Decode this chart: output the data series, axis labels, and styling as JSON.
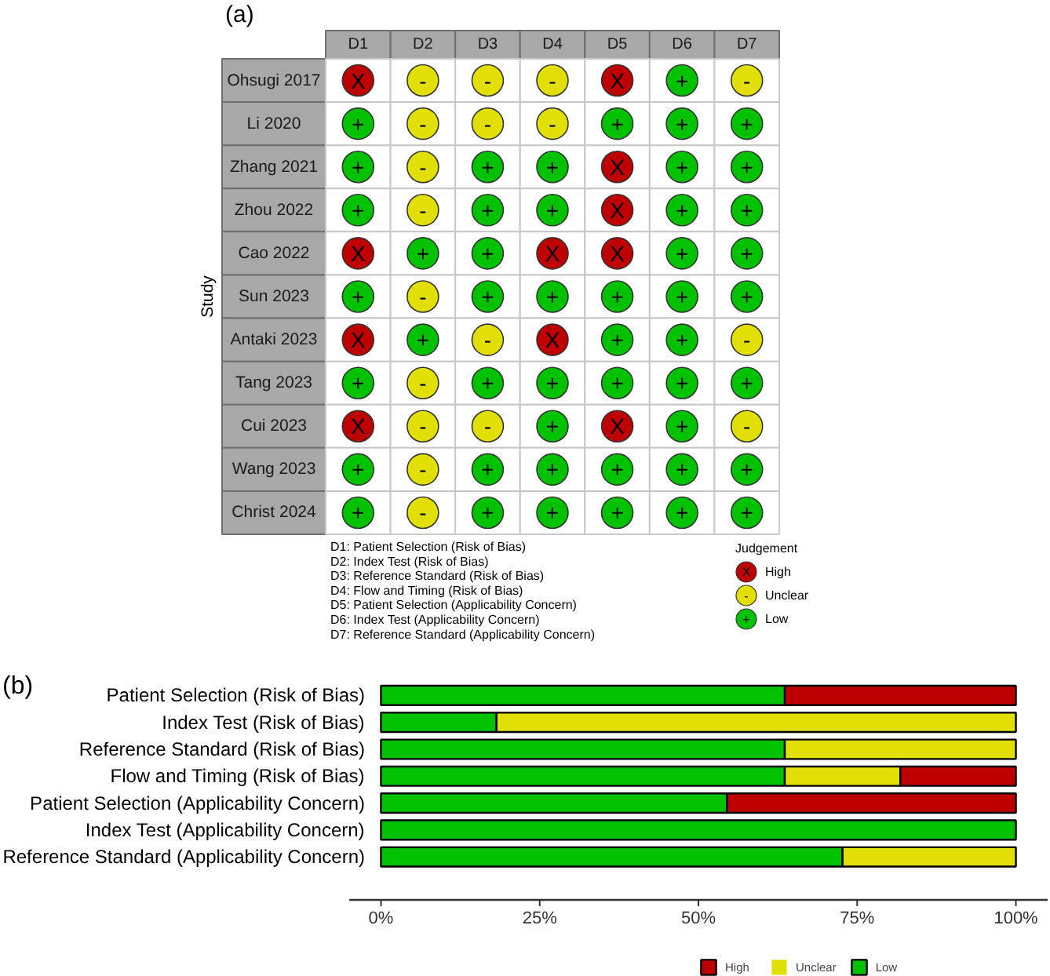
{
  "chart_data": [
    {
      "type": "heatmap",
      "title": "(a)",
      "ylabel": "Study",
      "categories": [
        "D1",
        "D2",
        "D3",
        "D4",
        "D5",
        "D6",
        "D7"
      ],
      "y_categories": [
        "Ohsugi 2017",
        "Li 2020",
        "Zhang 2021",
        "Zhou 2022",
        "Cao 2022",
        "Sun 2023",
        "Antaki 2023",
        "Tang 2023",
        "Cui 2023",
        "Wang 2023",
        "Christ 2024"
      ],
      "cells": [
        [
          "X",
          "-",
          "-",
          "-",
          "X",
          "+",
          "-"
        ],
        [
          "+",
          "-",
          "-",
          "-",
          "+",
          "+",
          "+"
        ],
        [
          "+",
          "-",
          "+",
          "+",
          "X",
          "+",
          "+"
        ],
        [
          "+",
          "-",
          "+",
          "+",
          "X",
          "+",
          "+"
        ],
        [
          "X",
          "+",
          "+",
          "X",
          "X",
          "+",
          "+"
        ],
        [
          "+",
          "-",
          "+",
          "+",
          "+",
          "+",
          "+"
        ],
        [
          "X",
          "+",
          "-",
          "X",
          "+",
          "+",
          "-"
        ],
        [
          "+",
          "-",
          "+",
          "+",
          "+",
          "+",
          "+"
        ],
        [
          "X",
          "-",
          "-",
          "+",
          "X",
          "+",
          "-"
        ],
        [
          "+",
          "-",
          "+",
          "+",
          "+",
          "+",
          "+"
        ],
        [
          "+",
          "-",
          "+",
          "+",
          "+",
          "+",
          "+"
        ]
      ],
      "cticks": [
        {
          "value": "X",
          "label": "High"
        },
        {
          "value": "-",
          "label": "Unclear"
        },
        {
          "value": "+",
          "label": "Low"
        }
      ],
      "clabel": "Judgement",
      "colors": [
        "#bf0000",
        "#e2df07",
        "#02c100"
      ],
      "annotations": [
        "D1: Patient Selection (Risk of Bias)",
        "D2: Index Test (Risk of Bias)",
        "D3: Reference Standard (Risk of Bias)",
        "D4: Flow and Timing (Risk of Bias)",
        "D5: Patient Selection (Applicability Concern)",
        "D6: Index Test (Applicability Concern)",
        "D7: Reference Standard (Applicability Concern)"
      ]
    },
    {
      "type": "bar",
      "title": "(b)",
      "orientation": "horizontal",
      "stacked": true,
      "categories": [
        "Patient Selection (Risk of Bias)",
        "Index Test (Risk of Bias)",
        "Reference Standard (Risk of Bias)",
        "Flow and Timing (Risk of Bias)",
        "Patient Selection (Applicability Concern)",
        "Index Test (Applicability Concern)",
        "Reference Standard (Applicability Concern)"
      ],
      "series": [
        {
          "name": "Low",
          "color": "#02c100",
          "values": [
            63.6,
            18.2,
            63.6,
            63.6,
            54.5,
            100,
            72.7
          ]
        },
        {
          "name": "Unclear",
          "color": "#e2df07",
          "values": [
            0,
            81.8,
            36.4,
            18.2,
            0,
            0,
            27.3
          ]
        },
        {
          "name": "High",
          "color": "#bf0000",
          "values": [
            36.4,
            0,
            0,
            18.2,
            45.5,
            0,
            0
          ]
        }
      ],
      "xlim": [
        -5,
        105
      ],
      "xticks": [
        {
          "value": 0,
          "label": "0%"
        },
        {
          "value": 25,
          "label": "25%"
        },
        {
          "value": 50,
          "label": "50%"
        },
        {
          "value": 75,
          "label": "75%"
        },
        {
          "value": 100,
          "label": "100%"
        }
      ],
      "legend": "bottom",
      "grid": false
    }
  ]
}
